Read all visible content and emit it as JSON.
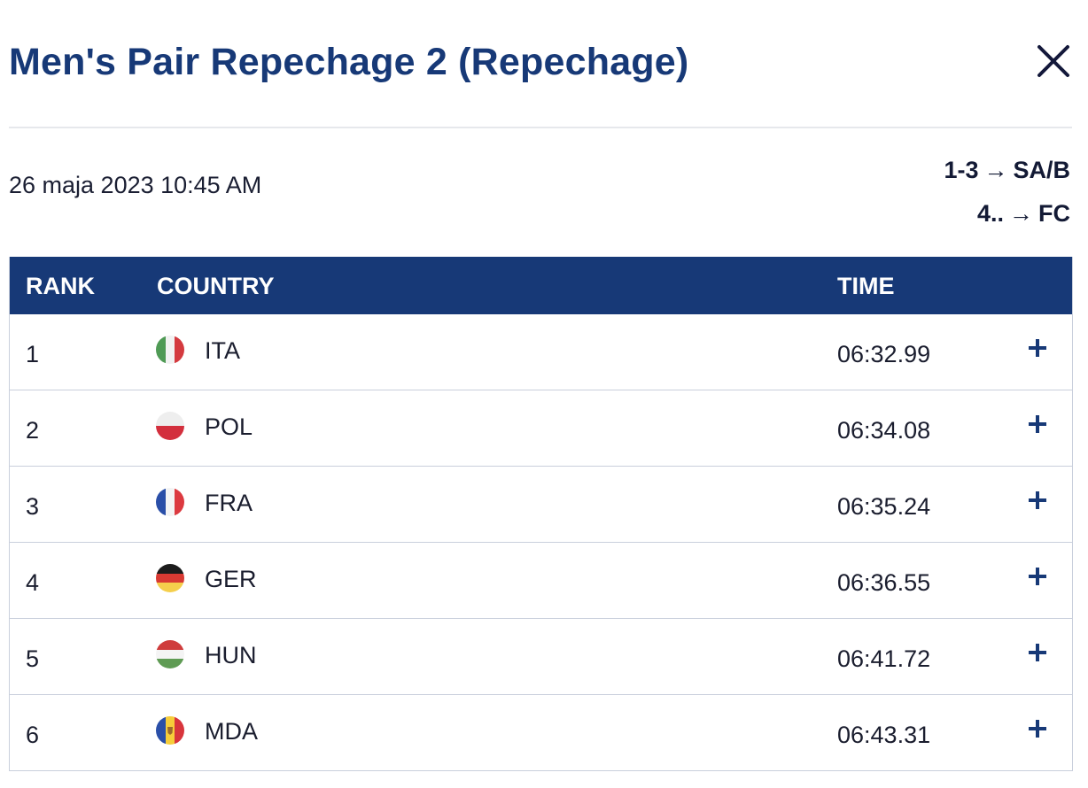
{
  "modal": {
    "title": "Men's Pair Repechage 2 (Repechage)",
    "close_icon": "close-icon"
  },
  "race": {
    "date": "26 maja 2023 10:45 AM",
    "progression": [
      {
        "positions": "1-3",
        "arrow": "→",
        "destination": "SA/B"
      },
      {
        "positions": "4..",
        "arrow": "→",
        "destination": "FC"
      }
    ]
  },
  "table": {
    "headers": {
      "rank": "RANK",
      "country": "COUNTRY",
      "time": "TIME"
    },
    "rows": [
      {
        "rank": "1",
        "country": "ITA",
        "flag_icon": "flag-italy-icon",
        "time": "06:32.99",
        "expand_icon": "plus-icon"
      },
      {
        "rank": "2",
        "country": "POL",
        "flag_icon": "flag-poland-icon",
        "time": "06:34.08",
        "expand_icon": "plus-icon"
      },
      {
        "rank": "3",
        "country": "FRA",
        "flag_icon": "flag-france-icon",
        "time": "06:35.24",
        "expand_icon": "plus-icon"
      },
      {
        "rank": "4",
        "country": "GER",
        "flag_icon": "flag-germany-icon",
        "time": "06:36.55",
        "expand_icon": "plus-icon"
      },
      {
        "rank": "5",
        "country": "HUN",
        "flag_icon": "flag-hungary-icon",
        "time": "06:41.72",
        "expand_icon": "plus-icon"
      },
      {
        "rank": "6",
        "country": "MDA",
        "flag_icon": "flag-moldova-icon",
        "time": "06:43.31",
        "expand_icon": "plus-icon"
      }
    ]
  },
  "colors": {
    "primary": "#173977",
    "divider": "#e6e8ec",
    "row_border": "#c9cfdc"
  }
}
